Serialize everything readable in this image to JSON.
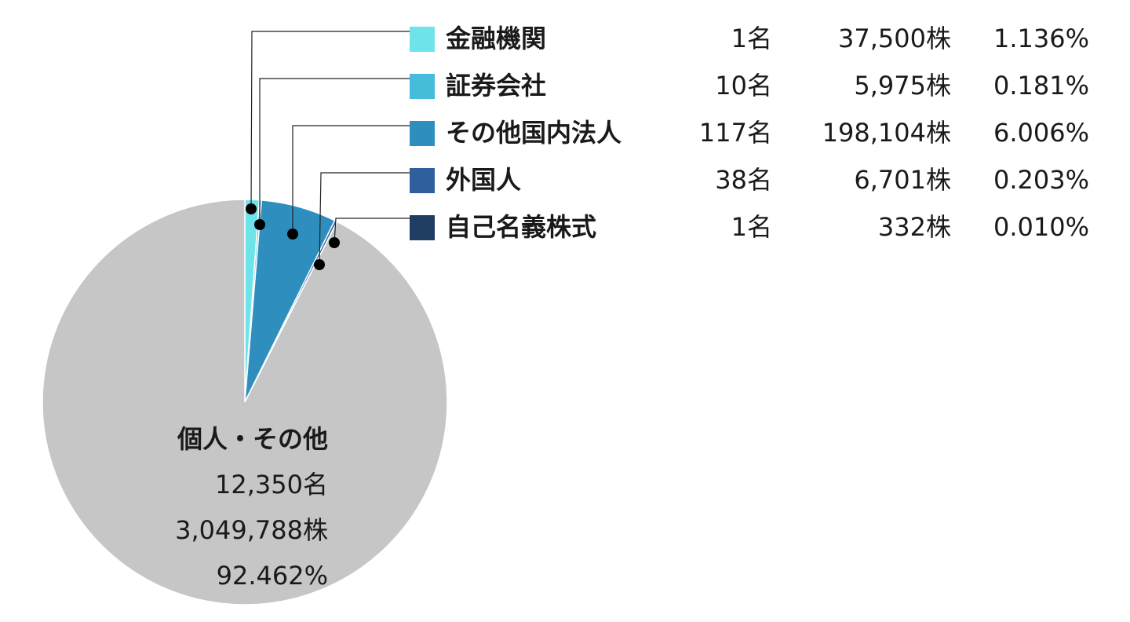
{
  "chart_data": {
    "type": "pie",
    "slices": [
      {
        "name": "金融機関",
        "holders": "1名",
        "shares": "37,500株",
        "percent_label": "1.136%",
        "value": 1.136,
        "color": "#6fe3ea"
      },
      {
        "name": "証券会社",
        "holders": "10名",
        "shares": "5,975株",
        "percent_label": "0.181%",
        "value": 0.181,
        "color": "#45bcd9"
      },
      {
        "name": "その他国内法人",
        "holders": "117名",
        "shares": "198,104株",
        "percent_label": "6.006%",
        "value": 6.006,
        "color": "#2e8fbf"
      },
      {
        "name": "外国人",
        "holders": "38名",
        "shares": "6,701株",
        "percent_label": "0.203%",
        "value": 0.203,
        "color": "#2f5f9c"
      },
      {
        "name": "自己名義株式",
        "holders": "1名",
        "shares": "332株",
        "percent_label": "0.010%",
        "value": 0.01,
        "color": "#1f3d63"
      }
    ],
    "main_slice": {
      "name": "個人・その他",
      "holders": "12,350名",
      "shares": "3,049,788株",
      "percent_label": "92.462%",
      "value": 92.462,
      "color": "#c6c6c6"
    }
  }
}
